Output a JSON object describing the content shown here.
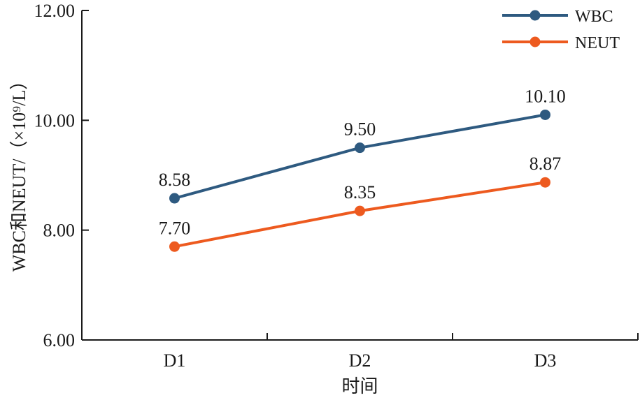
{
  "chart_data": {
    "type": "line",
    "categories": [
      "D1",
      "D2",
      "D3"
    ],
    "series": [
      {
        "name": "WBC",
        "values": [
          8.58,
          9.5,
          10.1
        ],
        "labels": [
          "8.58",
          "9.50",
          "10.10"
        ],
        "color": "#2e5a80"
      },
      {
        "name": "NEUT",
        "values": [
          7.7,
          8.35,
          8.87
        ],
        "labels": [
          "7.70",
          "8.35",
          "8.87"
        ],
        "color": "#ed5a1f"
      }
    ],
    "title": "",
    "xlabel": "时间",
    "ylabel": "WBC和NEUT/（×10⁹/L）",
    "ylim": [
      6.0,
      12.0
    ],
    "yticks": [
      "6.00",
      "8.00",
      "10.00",
      "12.00"
    ],
    "legend_position": "top-right",
    "grid": false
  }
}
